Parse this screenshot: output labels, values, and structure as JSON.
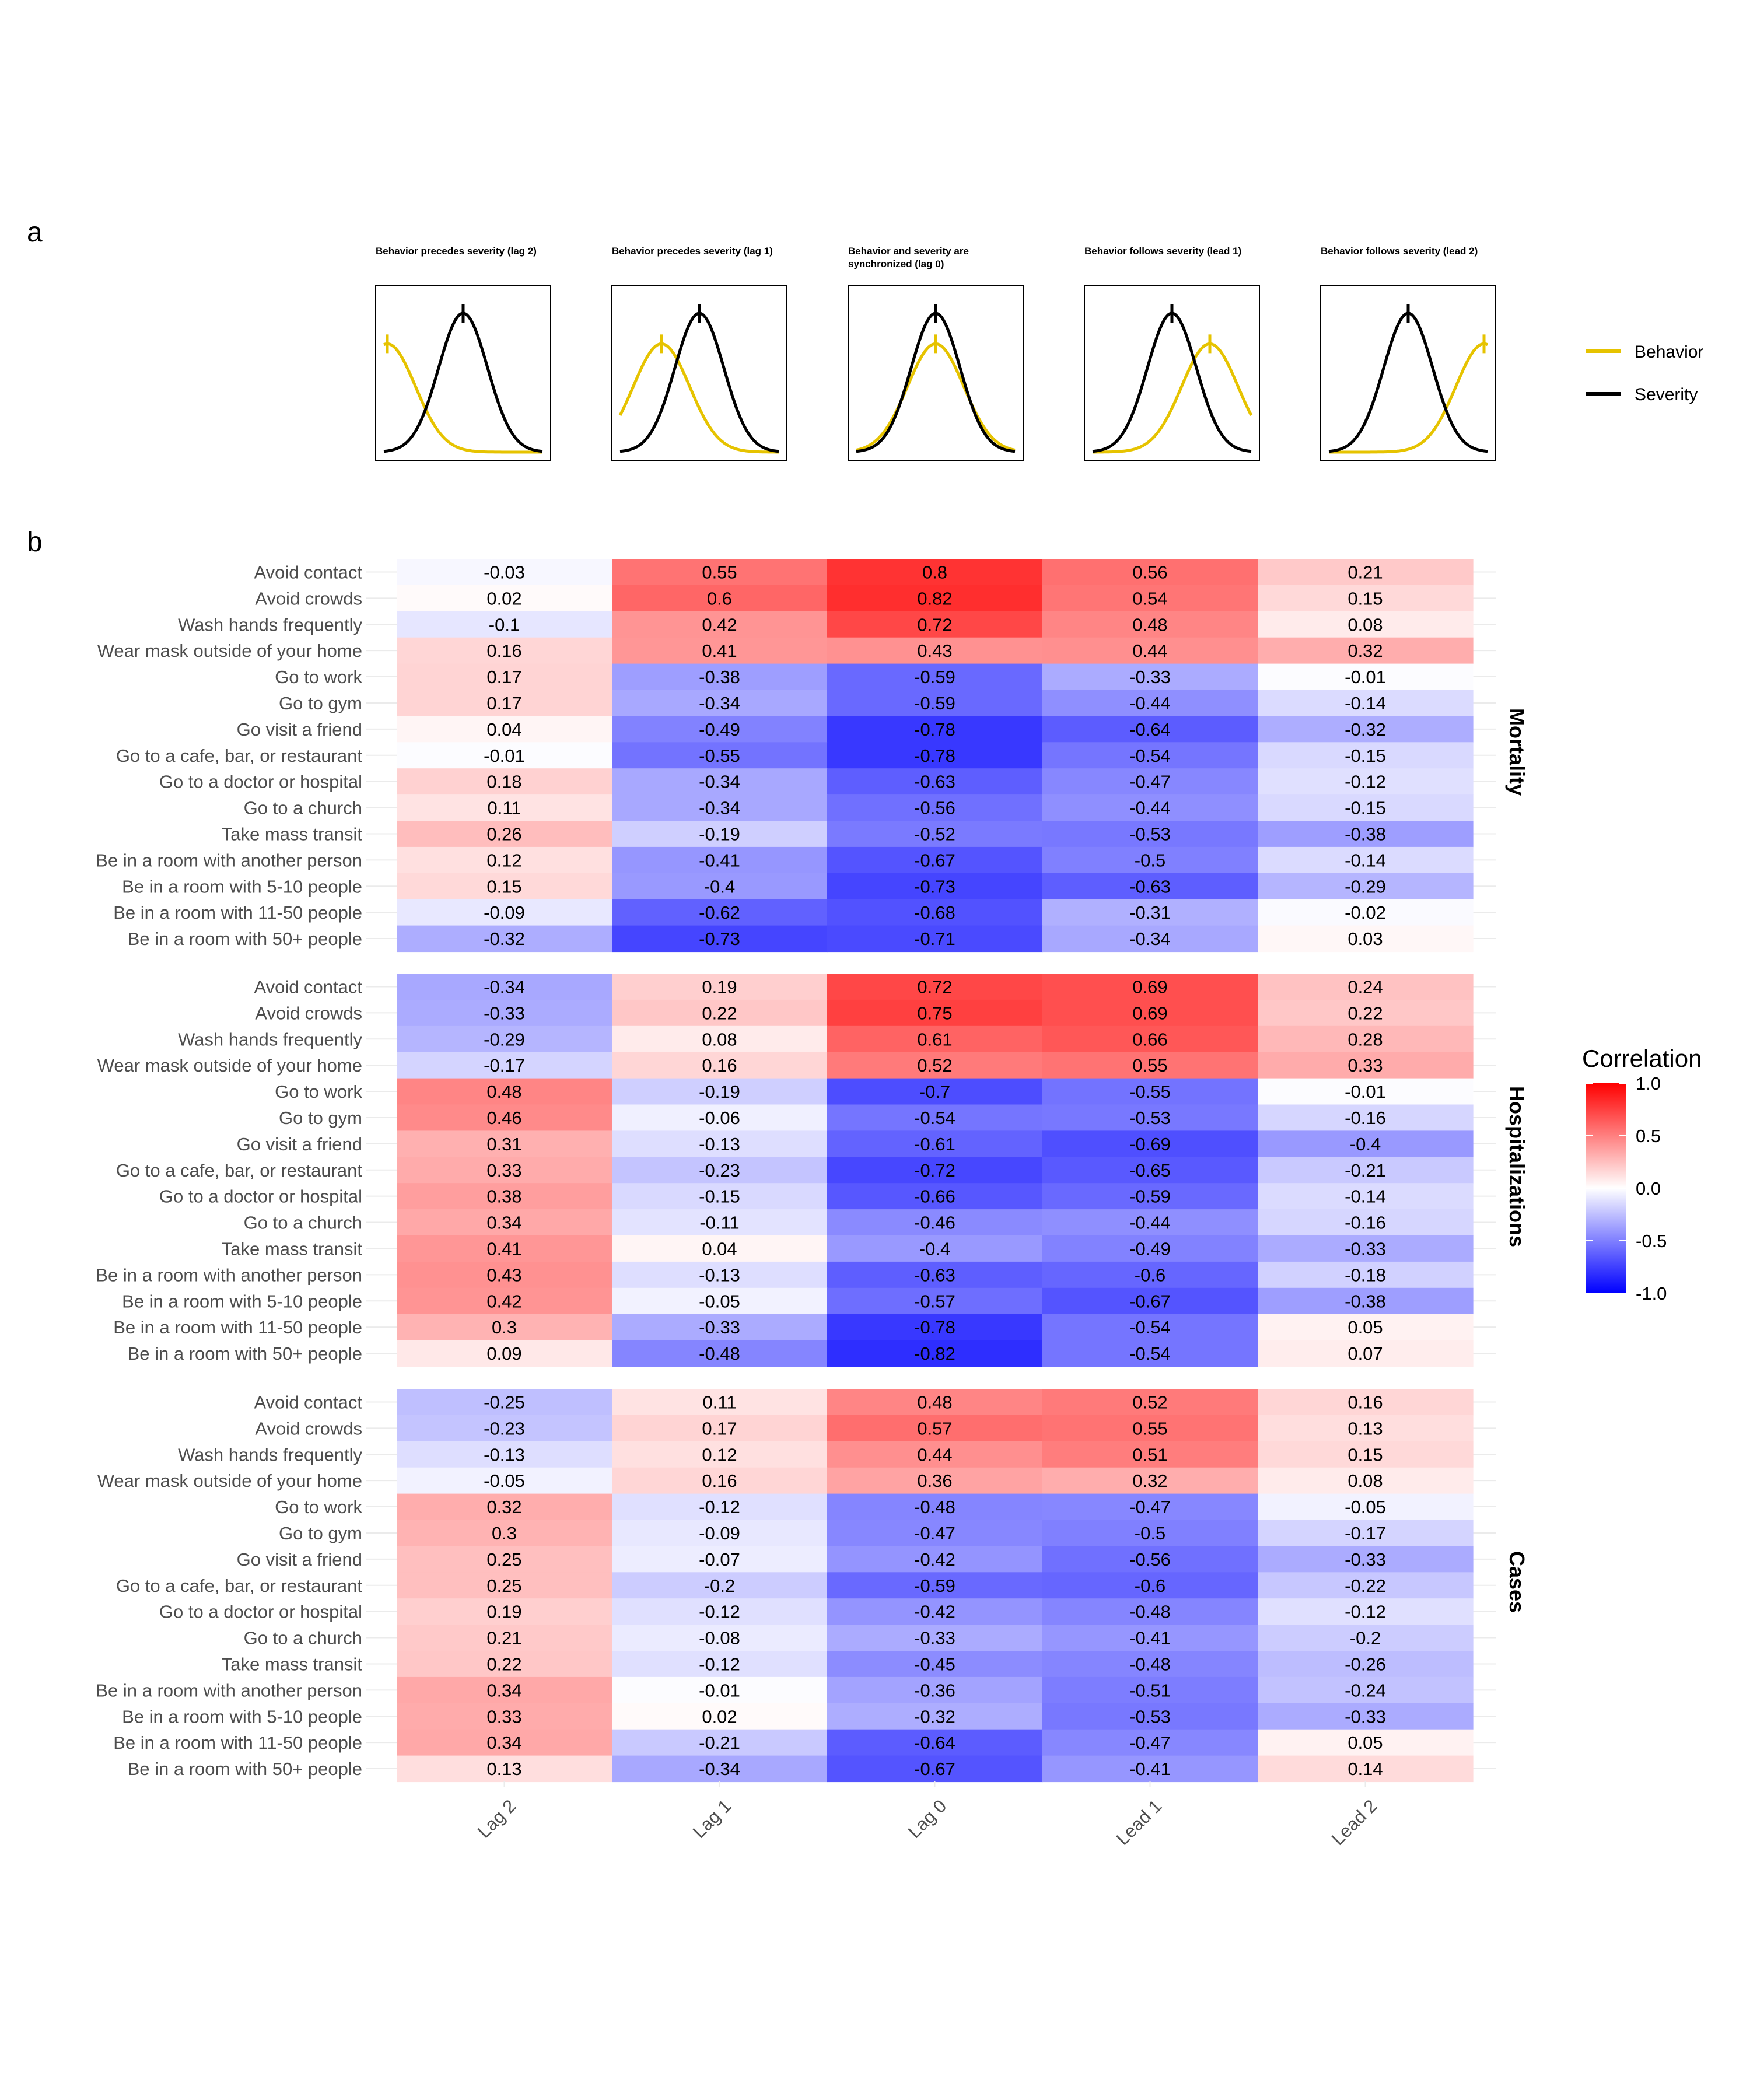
{
  "panel_a_label": "a",
  "panel_b_label": "b",
  "panel_a": {
    "titles": [
      [
        "Behavior precedes severity (lag 2)"
      ],
      [
        "Behavior precedes severity (lag 1)"
      ],
      [
        "Behavior and severity are",
        "synchronized (lag 0)"
      ],
      [
        "Behavior follows severity (lead 1)"
      ],
      [
        "Behavior follows severity (lead 2)"
      ]
    ],
    "behavior_offsets": [
      -2,
      -1,
      0,
      1,
      2
    ],
    "legend": [
      {
        "label": "Behavior",
        "color": "#E6C300"
      },
      {
        "label": "Severity",
        "color": "#000000"
      }
    ]
  },
  "colors": {
    "negative": "#0000FF",
    "neutral": "#FFFFFF",
    "positive": "#FF0000",
    "behavior": "#E6C300",
    "severity": "#000000"
  },
  "chart_data": {
    "type": "heatmap",
    "categories": [
      "Lag 2",
      "Lag 1",
      "Lag 0",
      "Lead 1",
      "Lead 2"
    ],
    "rows": [
      "Avoid contact",
      "Avoid crowds",
      "Wash hands frequently",
      "Wear mask outside of your home",
      "Go to work",
      "Go to gym",
      "Go visit a friend",
      "Go to a cafe, bar, or restaurant",
      "Go to a doctor or hospital",
      "Go to a church",
      "Take mass transit",
      "Be in a room with another person",
      "Be in a room with 5-10 people",
      "Be in a room with 11-50 people",
      "Be in a room with 50+ people"
    ],
    "facets": [
      {
        "name": "Mortality",
        "values": [
          [
            "-0.03",
            "0.55",
            "0.8",
            "0.56",
            "0.21"
          ],
          [
            "0.02",
            "0.6",
            "0.82",
            "0.54",
            "0.15"
          ],
          [
            "-0.1",
            "0.42",
            "0.72",
            "0.48",
            "0.08"
          ],
          [
            "0.16",
            "0.41",
            "0.43",
            "0.44",
            "0.32"
          ],
          [
            "0.17",
            "-0.38",
            "-0.59",
            "-0.33",
            "-0.01"
          ],
          [
            "0.17",
            "-0.34",
            "-0.59",
            "-0.44",
            "-0.14"
          ],
          [
            "0.04",
            "-0.49",
            "-0.78",
            "-0.64",
            "-0.32"
          ],
          [
            "-0.01",
            "-0.55",
            "-0.78",
            "-0.54",
            "-0.15"
          ],
          [
            "0.18",
            "-0.34",
            "-0.63",
            "-0.47",
            "-0.12"
          ],
          [
            "0.11",
            "-0.34",
            "-0.56",
            "-0.44",
            "-0.15"
          ],
          [
            "0.26",
            "-0.19",
            "-0.52",
            "-0.53",
            "-0.38"
          ],
          [
            "0.12",
            "-0.41",
            "-0.67",
            "-0.5",
            "-0.14"
          ],
          [
            "0.15",
            "-0.4",
            "-0.73",
            "-0.63",
            "-0.29"
          ],
          [
            "-0.09",
            "-0.62",
            "-0.68",
            "-0.31",
            "-0.02"
          ],
          [
            "-0.32",
            "-0.73",
            "-0.71",
            "-0.34",
            "0.03"
          ]
        ]
      },
      {
        "name": "Hospitalizations",
        "values": [
          [
            "-0.34",
            "0.19",
            "0.72",
            "0.69",
            "0.24"
          ],
          [
            "-0.33",
            "0.22",
            "0.75",
            "0.69",
            "0.22"
          ],
          [
            "-0.29",
            "0.08",
            "0.61",
            "0.66",
            "0.28"
          ],
          [
            "-0.17",
            "0.16",
            "0.52",
            "0.55",
            "0.33"
          ],
          [
            "0.48",
            "-0.19",
            "-0.7",
            "-0.55",
            "-0.01"
          ],
          [
            "0.46",
            "-0.06",
            "-0.54",
            "-0.53",
            "-0.16"
          ],
          [
            "0.31",
            "-0.13",
            "-0.61",
            "-0.69",
            "-0.4"
          ],
          [
            "0.33",
            "-0.23",
            "-0.72",
            "-0.65",
            "-0.21"
          ],
          [
            "0.38",
            "-0.15",
            "-0.66",
            "-0.59",
            "-0.14"
          ],
          [
            "0.34",
            "-0.11",
            "-0.46",
            "-0.44",
            "-0.16"
          ],
          [
            "0.41",
            "0.04",
            "-0.4",
            "-0.49",
            "-0.33"
          ],
          [
            "0.43",
            "-0.13",
            "-0.63",
            "-0.6",
            "-0.18"
          ],
          [
            "0.42",
            "-0.05",
            "-0.57",
            "-0.67",
            "-0.38"
          ],
          [
            "0.3",
            "-0.33",
            "-0.78",
            "-0.54",
            "0.05"
          ],
          [
            "0.09",
            "-0.48",
            "-0.82",
            "-0.54",
            "0.07"
          ]
        ]
      },
      {
        "name": "Cases",
        "values": [
          [
            "-0.25",
            "0.11",
            "0.48",
            "0.52",
            "0.16"
          ],
          [
            "-0.23",
            "0.17",
            "0.57",
            "0.55",
            "0.13"
          ],
          [
            "-0.13",
            "0.12",
            "0.44",
            "0.51",
            "0.15"
          ],
          [
            "-0.05",
            "0.16",
            "0.36",
            "0.32",
            "0.08"
          ],
          [
            "0.32",
            "-0.12",
            "-0.48",
            "-0.47",
            "-0.05"
          ],
          [
            "0.3",
            "-0.09",
            "-0.47",
            "-0.5",
            "-0.17"
          ],
          [
            "0.25",
            "-0.07",
            "-0.42",
            "-0.56",
            "-0.33"
          ],
          [
            "0.25",
            "-0.2",
            "-0.59",
            "-0.6",
            "-0.22"
          ],
          [
            "0.19",
            "-0.12",
            "-0.42",
            "-0.48",
            "-0.12"
          ],
          [
            "0.21",
            "-0.08",
            "-0.33",
            "-0.41",
            "-0.2"
          ],
          [
            "0.22",
            "-0.12",
            "-0.45",
            "-0.48",
            "-0.26"
          ],
          [
            "0.34",
            "-0.01",
            "-0.36",
            "-0.51",
            "-0.24"
          ],
          [
            "0.33",
            "0.02",
            "-0.32",
            "-0.53",
            "-0.33"
          ],
          [
            "0.34",
            "-0.21",
            "-0.64",
            "-0.47",
            "0.05"
          ],
          [
            "0.13",
            "-0.34",
            "-0.67",
            "-0.41",
            "0.14"
          ]
        ]
      }
    ],
    "legend_title": "Correlation",
    "legend_ticks": [
      "1.0",
      "0.5",
      "0.0",
      "-0.5",
      "-1.0"
    ],
    "range": [
      -1,
      1
    ]
  }
}
